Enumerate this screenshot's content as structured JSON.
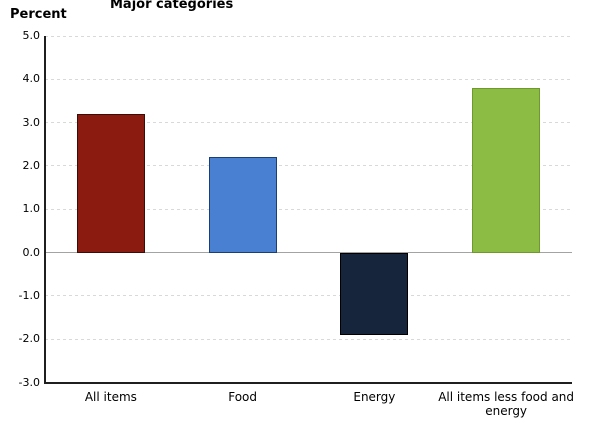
{
  "header": {
    "title": "Major categories",
    "y_axis_title": "Percent"
  },
  "chart_data": {
    "type": "bar",
    "title": "Major categories",
    "xlabel": "",
    "ylabel": "Percent",
    "categories": [
      "All items",
      "Food",
      "Energy",
      "All items less food and energy"
    ],
    "values": [
      3.2,
      2.2,
      -1.9,
      3.8
    ],
    "bar_fill_colors": [
      "#8B1B10",
      "#4A80D2",
      "#16243C",
      "#8DBC44"
    ],
    "bar_border_colors": [
      "#3E0C06",
      "#1B3F73",
      "#000000",
      "#6E9A2D"
    ],
    "ylim": [
      -3.0,
      5.0
    ],
    "ytick_step": 1.0,
    "ytick_labels": [
      "5.0",
      "4.0",
      "3.0",
      "2.0",
      "1.0",
      "0.0",
      "-1.0",
      "-2.0",
      "-3.0"
    ],
    "grid": "horizontal-dashed",
    "zero_line": "solid-gray",
    "legend_position": "none"
  },
  "colors": {
    "background": "#ffffff",
    "grid": "#d9d9d9",
    "zero_line": "#a3a3a3",
    "axis": "#1f1f1f",
    "text": "#000000"
  }
}
